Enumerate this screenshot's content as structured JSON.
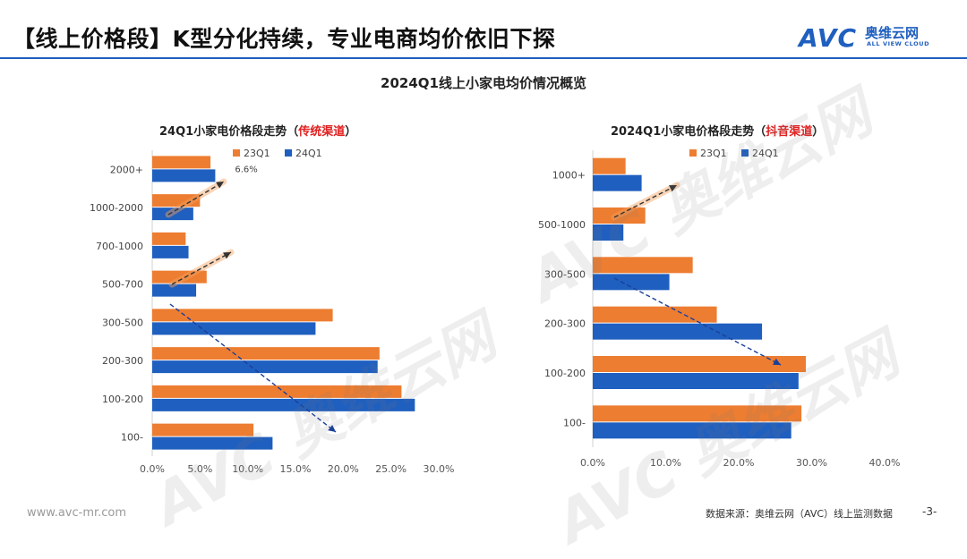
{
  "header": {
    "title": "【线上价格段】K型分化持续，专业电商均价依旧下探",
    "logo_text": "AVC",
    "logo_cn": "奥维云网",
    "logo_en": "ALL VIEW CLOUD"
  },
  "subtitle": "2024Q1线上小家电均价情况概览",
  "footer": {
    "site": "www.avc-mr.com",
    "source": "数据来源：奥维云网（AVC）线上监测数据",
    "page": "-3-"
  },
  "colors": {
    "q23": "#ED7D31",
    "q24": "#1F5FBF",
    "accent": "#1f5fbf",
    "highlight": "#e02020"
  },
  "chart_data": [
    {
      "type": "bar",
      "orientation": "horizontal",
      "title_prefix": "24Q1小家电价格段走势（",
      "title_highlight": "传统渠道",
      "title_suffix": "）",
      "categories": [
        "2000+",
        "1000-2000",
        "700-1000",
        "500-700",
        "300-500",
        "200-300",
        "100-200",
        "100-"
      ],
      "series": [
        {
          "name": "23Q1",
          "color": "#ED7D31",
          "values": [
            6.1,
            5.0,
            3.5,
            5.7,
            18.9,
            23.8,
            26.1,
            10.6
          ]
        },
        {
          "name": "24Q1",
          "color": "#1F5FBF",
          "values": [
            6.6,
            4.3,
            3.8,
            4.6,
            17.1,
            23.6,
            27.5,
            12.6
          ]
        }
      ],
      "data_labels": [
        "6.6%"
      ],
      "xlim": [
        0,
        30
      ],
      "xticks": [
        "0.0%",
        "5.0%",
        "10.0%",
        "15.0%",
        "20.0%",
        "25.0%",
        "30.0%"
      ],
      "legend": "top"
    },
    {
      "type": "bar",
      "orientation": "horizontal",
      "title_prefix": "2024Q1小家电价格段走势（",
      "title_highlight": "抖音渠道",
      "title_suffix": "）",
      "categories": [
        "1000+",
        "500-1000",
        "300-500",
        "200-300",
        "100-200",
        "100-"
      ],
      "series": [
        {
          "name": "23Q1",
          "color": "#ED7D31",
          "values": [
            4.5,
            7.2,
            13.7,
            17.0,
            29.2,
            28.6
          ]
        },
        {
          "name": "24Q1",
          "color": "#1F5FBF",
          "values": [
            6.7,
            4.2,
            10.5,
            23.2,
            28.2,
            27.2
          ]
        }
      ],
      "xlim": [
        0,
        40
      ],
      "xticks": [
        "0.0%",
        "10.0%",
        "20.0%",
        "30.0%",
        "40.0%"
      ],
      "legend": "top"
    }
  ]
}
